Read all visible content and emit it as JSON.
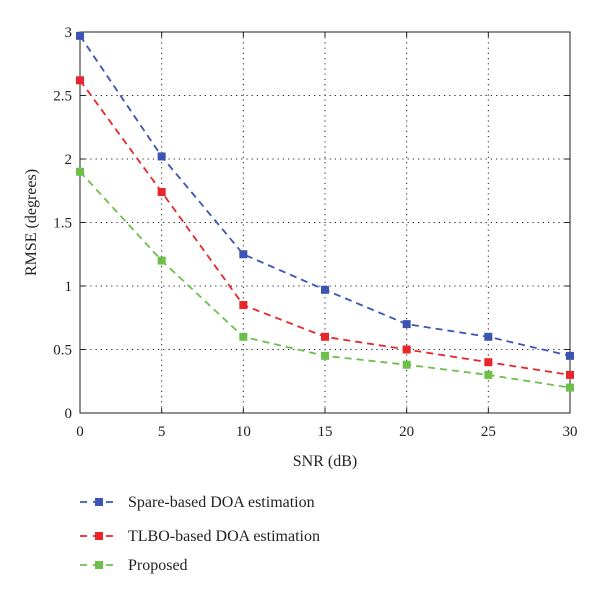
{
  "chart_data": {
    "type": "line",
    "xlabel": "SNR (dB)",
    "ylabel": "RMSE (degrees)",
    "x": [
      0,
      5,
      10,
      15,
      20,
      25,
      30
    ],
    "xlim": [
      0,
      30
    ],
    "ylim": [
      0,
      3
    ],
    "xticks": [
      "0",
      "5",
      "10",
      "15",
      "20",
      "25",
      "30"
    ],
    "yticks": [
      "0",
      "0.5",
      "1",
      "1.5",
      "2",
      "2.5",
      "3"
    ],
    "grid": true,
    "grid_style": "dotted",
    "legend_position": "bottom, below plot",
    "series": [
      {
        "name": "Spare-based DOA estimation",
        "values": [
          2.97,
          2.02,
          1.25,
          0.97,
          0.7,
          0.6,
          0.45
        ],
        "color": "#3c55b4",
        "marker": "square",
        "line": "dashed"
      },
      {
        "name": "TLBO-based DOA estimation",
        "values": [
          2.62,
          1.74,
          0.85,
          0.6,
          0.5,
          0.4,
          0.3
        ],
        "color": "#e8262a",
        "marker": "square",
        "line": "dashed"
      },
      {
        "name": "Proposed",
        "values": [
          1.9,
          1.2,
          0.6,
          0.45,
          0.38,
          0.3,
          0.2
        ],
        "color": "#6cc04a",
        "marker": "square",
        "line": "dashed"
      }
    ]
  }
}
